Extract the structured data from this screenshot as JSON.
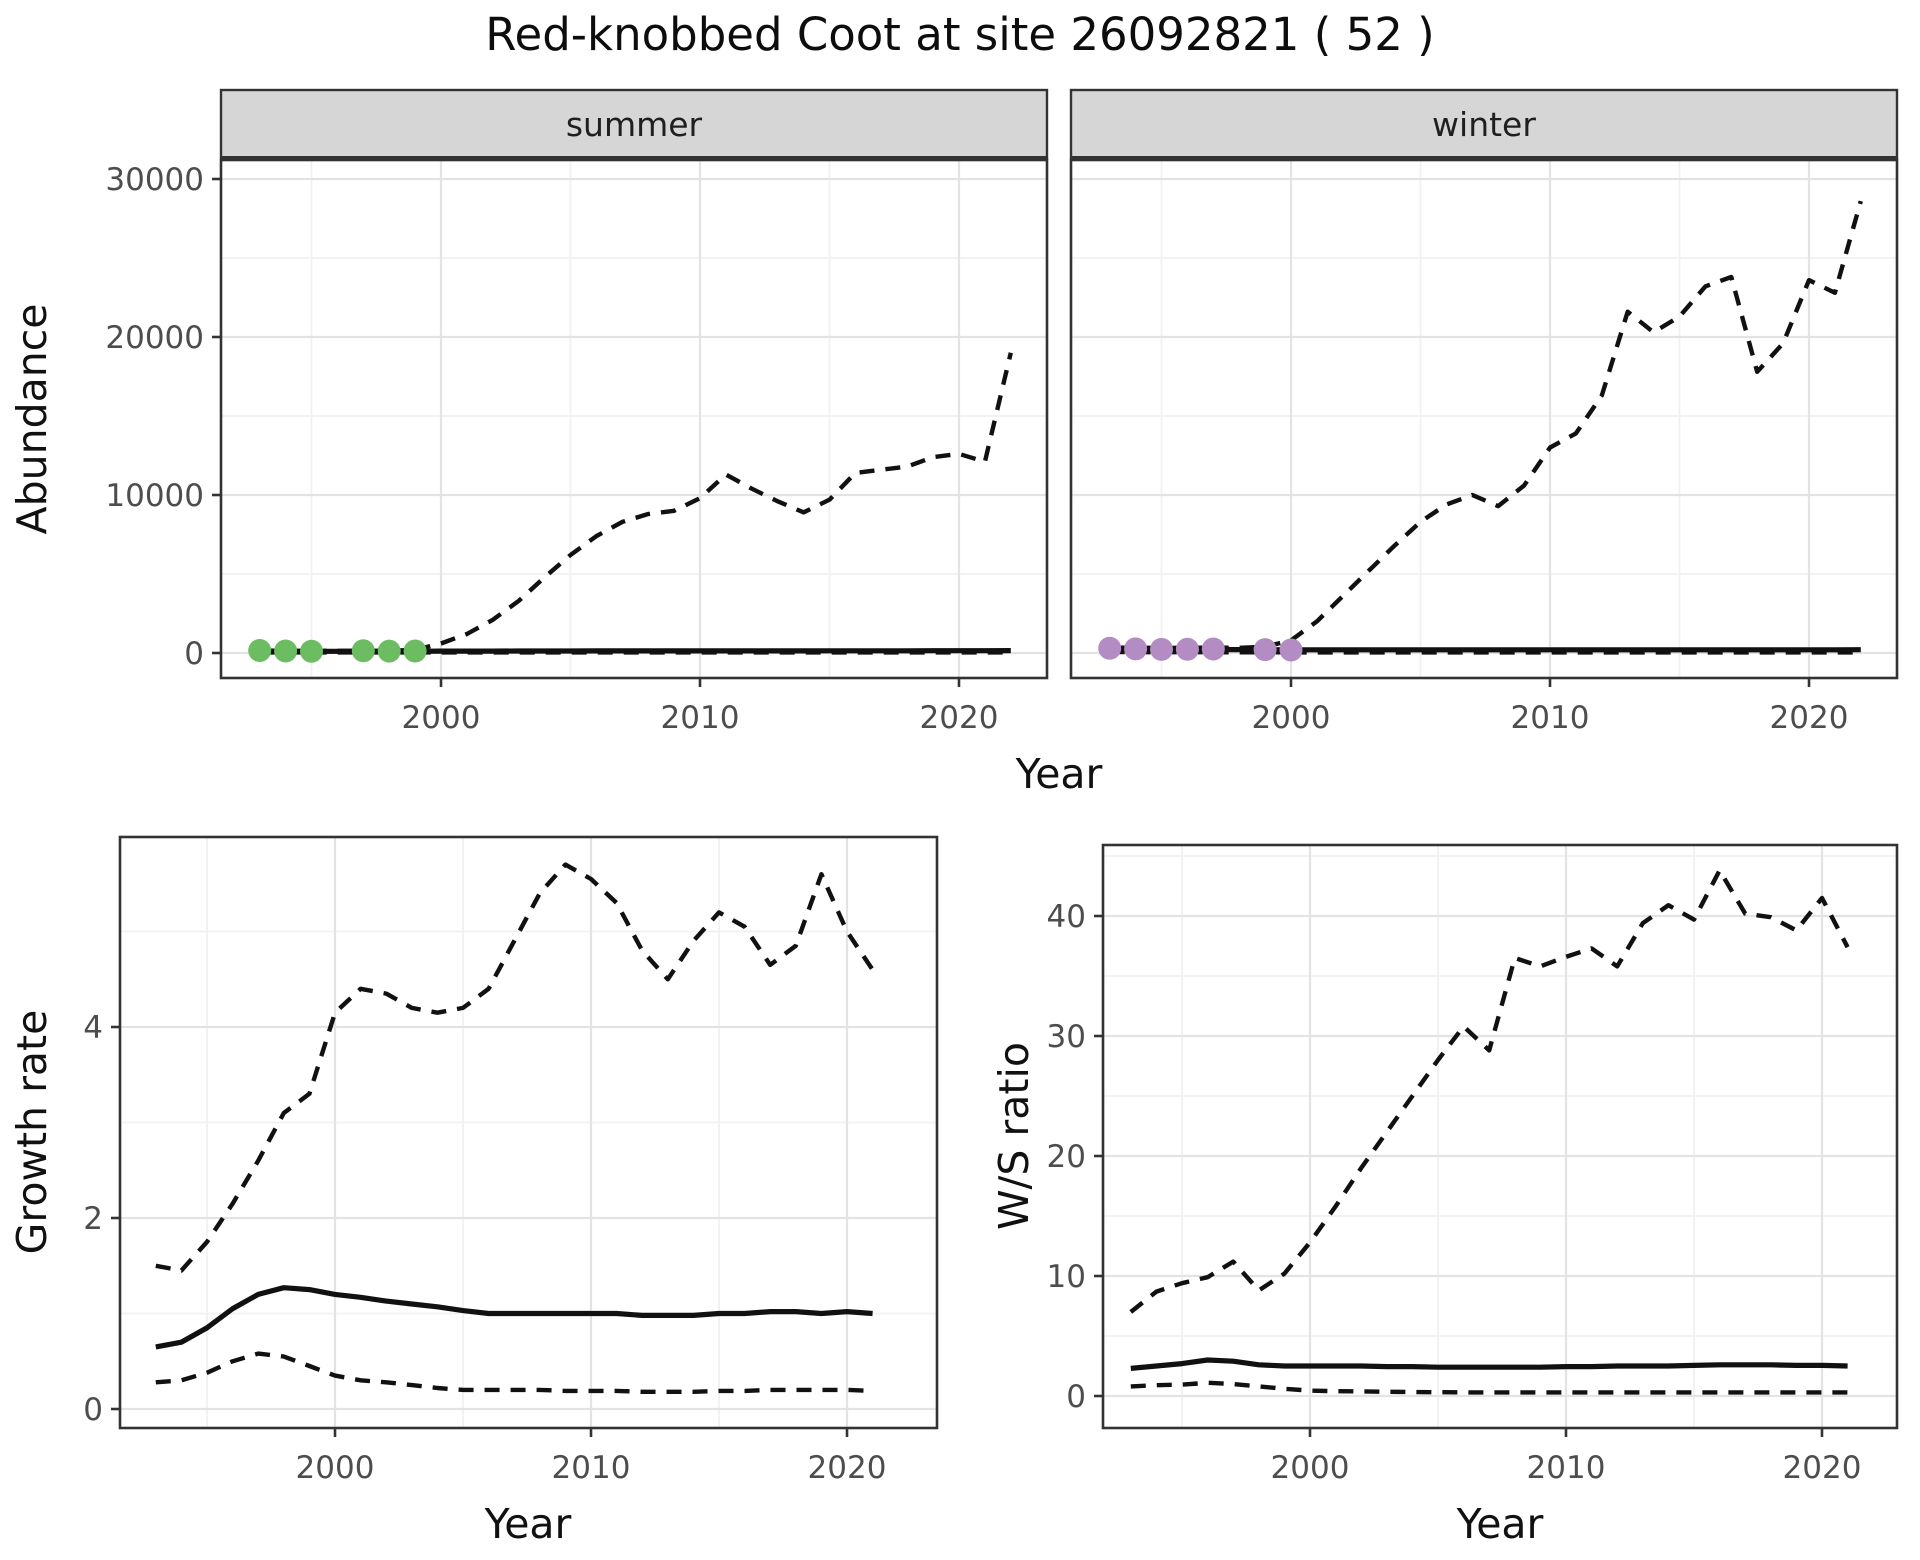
{
  "title": "Red-knobbed Coot at site 26092821 ( 52 )",
  "colors": {
    "summer_points": "#6CBD62",
    "winter_points": "#B28CC2",
    "line": "#111111",
    "strip_bg": "#D6D6D6",
    "panel_border": "#333333",
    "grid_major": "#E3E3E3",
    "grid_minor": "#F1F1F1",
    "tick_text": "#4D4D4D",
    "axis_title_text": "#111111"
  },
  "chart_data": [
    {
      "type": "line",
      "name": "summer-abundance",
      "facet": "summer",
      "xlabel": "Year",
      "ylabel": "Abundance",
      "xlim": [
        1991.5,
        2023.4
      ],
      "ylim": [
        -1500,
        31200
      ],
      "xticks": [
        2000,
        2010,
        2020
      ],
      "yticks": [
        0,
        10000,
        20000,
        30000
      ],
      "grid": true,
      "legend": "none",
      "x": [
        1993,
        1994,
        1995,
        1996,
        1997,
        1998,
        1999,
        2000,
        2001,
        2002,
        2003,
        2004,
        2005,
        2006,
        2007,
        2008,
        2009,
        2010,
        2011,
        2012,
        2013,
        2014,
        2015,
        2016,
        2017,
        2018,
        2019,
        2020,
        2021,
        2022
      ],
      "series": [
        {
          "name": "lower_ci",
          "style": "dashed",
          "values": [
            35,
            35,
            35,
            35,
            35,
            35,
            35,
            35,
            35,
            35,
            35,
            35,
            35,
            35,
            35,
            35,
            35,
            35,
            35,
            35,
            35,
            35,
            35,
            35,
            35,
            35,
            35,
            35,
            35,
            35
          ]
        },
        {
          "name": "upper_ci",
          "style": "dashed",
          "values": [
            150,
            140,
            130,
            140,
            130,
            140,
            200,
            600,
            1200,
            2100,
            3300,
            4800,
            6200,
            7400,
            8300,
            8800,
            9000,
            9800,
            11300,
            10400,
            9600,
            8900,
            9700,
            11400,
            11600,
            11800,
            12400,
            12600,
            12100,
            19000
          ]
        },
        {
          "name": "median",
          "style": "solid",
          "values": [
            100,
            100,
            100,
            110,
            110,
            110,
            110,
            120,
            120,
            120,
            125,
            125,
            125,
            130,
            130,
            130,
            130,
            135,
            135,
            135,
            135,
            135,
            140,
            140,
            140,
            140,
            145,
            145,
            145,
            150
          ]
        }
      ],
      "points": {
        "name": "observed-counts",
        "color_key": "summer_points",
        "x": [
          1993,
          1994,
          1995,
          1997,
          1998,
          1999
        ],
        "y": [
          160,
          130,
          110,
          140,
          120,
          130
        ]
      }
    },
    {
      "type": "line",
      "name": "winter-abundance",
      "facet": "winter",
      "xlabel": "Year",
      "ylabel": "Abundance",
      "xlim": [
        1991.5,
        2023.4
      ],
      "ylim": [
        -1500,
        31200
      ],
      "xticks": [
        2000,
        2010,
        2020
      ],
      "yticks": [
        0,
        10000,
        20000,
        30000
      ],
      "grid": true,
      "legend": "none",
      "x": [
        1993,
        1994,
        1995,
        1996,
        1997,
        1998,
        1999,
        2000,
        2001,
        2002,
        2003,
        2004,
        2005,
        2006,
        2007,
        2008,
        2009,
        2010,
        2011,
        2012,
        2013,
        2014,
        2015,
        2016,
        2017,
        2018,
        2019,
        2020,
        2021,
        2022
      ],
      "series": [
        {
          "name": "lower_ci",
          "style": "dashed",
          "values": [
            60,
            55,
            50,
            50,
            50,
            45,
            45,
            40,
            40,
            40,
            40,
            40,
            40,
            40,
            40,
            40,
            40,
            40,
            40,
            40,
            40,
            40,
            40,
            40,
            40,
            40,
            40,
            40,
            40,
            40
          ]
        },
        {
          "name": "upper_ci",
          "style": "dashed",
          "values": [
            350,
            330,
            320,
            330,
            340,
            330,
            400,
            800,
            2000,
            3600,
            5200,
            6800,
            8300,
            9400,
            10000,
            9300,
            10600,
            13000,
            13900,
            16300,
            21600,
            20300,
            21300,
            23200,
            23800,
            17800,
            19600,
            23600,
            22800,
            28600
          ]
        },
        {
          "name": "median",
          "style": "solid",
          "values": [
            250,
            240,
            230,
            225,
            220,
            215,
            210,
            205,
            200,
            200,
            200,
            200,
            200,
            200,
            200,
            200,
            200,
            200,
            200,
            200,
            200,
            200,
            200,
            200,
            200,
            200,
            200,
            200,
            200,
            210
          ]
        }
      ],
      "points": {
        "name": "observed-counts",
        "color_key": "winter_points",
        "x": [
          1993,
          1994,
          1995,
          1996,
          1997,
          1999,
          2000
        ],
        "y": [
          300,
          260,
          230,
          240,
          250,
          210,
          190
        ]
      }
    },
    {
      "type": "line",
      "name": "growth-rate",
      "facet": null,
      "xlabel": "Year",
      "ylabel": "Growth rate",
      "xlim": [
        1991.6,
        2023.5
      ],
      "ylim": [
        -0.2,
        6.0
      ],
      "xticks": [
        2000,
        2010,
        2020
      ],
      "yticks": [
        0,
        2,
        4
      ],
      "grid": true,
      "legend": "none",
      "x": [
        1993,
        1994,
        1995,
        1996,
        1997,
        1998,
        1999,
        2000,
        2001,
        2002,
        2003,
        2004,
        2005,
        2006,
        2007,
        2008,
        2009,
        2010,
        2011,
        2012,
        2013,
        2014,
        2015,
        2016,
        2017,
        2018,
        2019,
        2020,
        2021
      ],
      "series": [
        {
          "name": "lower_ci",
          "style": "dashed",
          "values": [
            0.28,
            0.3,
            0.38,
            0.5,
            0.58,
            0.55,
            0.45,
            0.35,
            0.3,
            0.28,
            0.25,
            0.22,
            0.2,
            0.2,
            0.2,
            0.2,
            0.19,
            0.19,
            0.19,
            0.18,
            0.18,
            0.18,
            0.19,
            0.19,
            0.2,
            0.2,
            0.2,
            0.2,
            0.19
          ]
        },
        {
          "name": "upper_ci",
          "style": "dashed",
          "values": [
            1.5,
            1.45,
            1.75,
            2.15,
            2.6,
            3.1,
            3.3,
            4.15,
            4.4,
            4.35,
            4.2,
            4.15,
            4.2,
            4.4,
            4.9,
            5.4,
            5.7,
            5.55,
            5.3,
            4.8,
            4.5,
            4.9,
            5.2,
            5.05,
            4.65,
            4.85,
            5.6,
            5.0,
            4.6
          ]
        },
        {
          "name": "median",
          "style": "solid",
          "values": [
            0.65,
            0.7,
            0.85,
            1.05,
            1.2,
            1.27,
            1.25,
            1.2,
            1.17,
            1.13,
            1.1,
            1.07,
            1.03,
            1.0,
            1.0,
            1.0,
            1.0,
            1.0,
            1.0,
            0.98,
            0.98,
            0.98,
            1.0,
            1.0,
            1.02,
            1.02,
            1.0,
            1.02,
            1.0
          ]
        }
      ],
      "points": null
    },
    {
      "type": "line",
      "name": "ws-ratio",
      "facet": null,
      "xlabel": "Year",
      "ylabel": "W/S ratio",
      "xlim": [
        1991.9,
        2023.0
      ],
      "ylim": [
        -2.5,
        45.5
      ],
      "xticks": [
        2000,
        2010,
        2020
      ],
      "yticks": [
        0,
        10,
        20,
        30,
        40
      ],
      "grid": true,
      "legend": "none",
      "x": [
        1993,
        1994,
        1995,
        1996,
        1997,
        1998,
        1999,
        2000,
        2001,
        2002,
        2003,
        2004,
        2005,
        2006,
        2007,
        2008,
        2009,
        2010,
        2011,
        2012,
        2013,
        2014,
        2015,
        2016,
        2017,
        2018,
        2019,
        2020,
        2021
      ],
      "series": [
        {
          "name": "lower_ci",
          "style": "dashed",
          "values": [
            0.8,
            0.9,
            0.95,
            1.1,
            1.0,
            0.8,
            0.6,
            0.45,
            0.4,
            0.38,
            0.35,
            0.33,
            0.32,
            0.3,
            0.3,
            0.3,
            0.3,
            0.3,
            0.3,
            0.3,
            0.3,
            0.3,
            0.3,
            0.3,
            0.3,
            0.3,
            0.3,
            0.3,
            0.3
          ]
        },
        {
          "name": "upper_ci",
          "style": "dashed",
          "values": [
            7.0,
            8.7,
            9.4,
            9.9,
            11.2,
            8.8,
            10.2,
            12.8,
            15.8,
            19.0,
            22.0,
            25.0,
            28.0,
            30.8,
            28.8,
            36.5,
            35.8,
            36.6,
            37.3,
            35.8,
            39.4,
            40.9,
            39.7,
            43.8,
            40.2,
            39.9,
            38.8,
            41.5,
            37.4
          ]
        },
        {
          "name": "median",
          "style": "solid",
          "values": [
            2.3,
            2.5,
            2.7,
            3.0,
            2.9,
            2.6,
            2.5,
            2.5,
            2.5,
            2.5,
            2.45,
            2.45,
            2.4,
            2.4,
            2.4,
            2.4,
            2.4,
            2.45,
            2.45,
            2.5,
            2.5,
            2.5,
            2.55,
            2.6,
            2.6,
            2.6,
            2.55,
            2.55,
            2.5
          ]
        }
      ],
      "points": null
    }
  ]
}
